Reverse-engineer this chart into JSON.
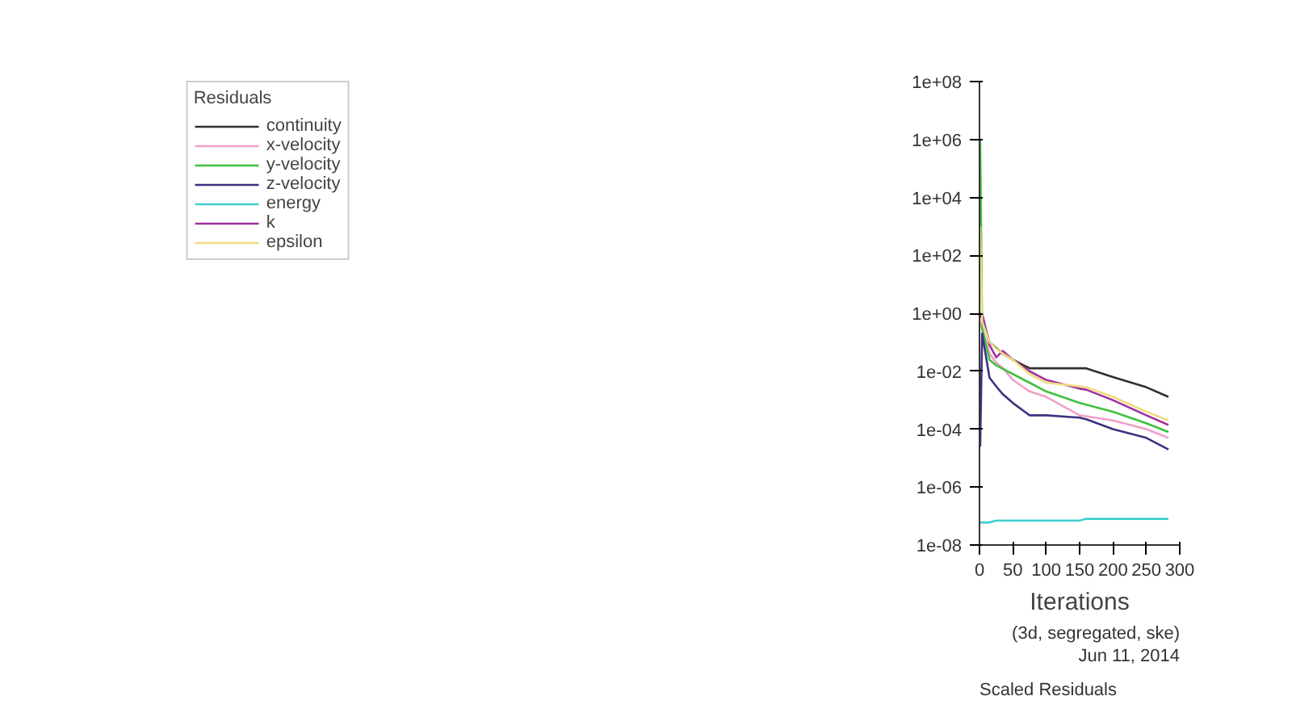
{
  "chart_data": {
    "type": "line",
    "xlabel": "Iterations",
    "legend_title": "Residuals",
    "legend": "top left",
    "log": "y",
    "grid": false,
    "xlim": [
      0,
      300
    ],
    "xticks": [
      0,
      50,
      100,
      150,
      200,
      250,
      300
    ],
    "ylim": [
      1e-08,
      100000000.0
    ],
    "yticks": [
      {
        "value": 1e-08,
        "label": "1e-08"
      },
      {
        "value": 1e-06,
        "label": "1e-06"
      },
      {
        "value": 0.0001,
        "label": "1e-04"
      },
      {
        "value": 0.01,
        "label": "1e-02"
      },
      {
        "value": 1,
        "label": "1e+00"
      },
      {
        "value": 100,
        "label": "1e+02"
      },
      {
        "value": 10000,
        "label": "1e+04"
      },
      {
        "value": 1000000,
        "label": "1e+06"
      },
      {
        "value": 100000000,
        "label": "1e+08"
      }
    ],
    "x": [
      1,
      4,
      15,
      25,
      35,
      50,
      75,
      100,
      150,
      160,
      200,
      250,
      283
    ],
    "series": [
      {
        "name": "continuity",
        "color": "#303030",
        "values": [
          1,
          0.63,
          0.1,
          0.063,
          0.04,
          0.025,
          0.0126,
          0.0126,
          0.0126,
          0.0126,
          0.0063,
          0.0028,
          0.0013
        ]
      },
      {
        "name": "x-velocity",
        "color": "#f0a0c8",
        "values": [
          0.5,
          0.3,
          0.04,
          0.02,
          0.013,
          0.005,
          0.002,
          0.0013,
          0.0003,
          0.00028,
          0.0002,
          0.0001,
          5e-05
        ]
      },
      {
        "name": "y-velocity",
        "color": "#40c040",
        "values": [
          1000000,
          0.3,
          0.025,
          0.016,
          0.012,
          0.008,
          0.004,
          0.002,
          0.0008,
          0.0007,
          0.0004,
          0.00016,
          8e-05
        ]
      },
      {
        "name": "z-velocity",
        "color": "#403080",
        "values": [
          2.5e-05,
          0.2,
          0.006,
          0.003,
          0.0016,
          0.0008,
          0.0003,
          0.0003,
          0.00025,
          0.00022,
          0.0001,
          5e-05,
          2e-05
        ]
      },
      {
        "name": "energy",
        "color": "#40d0d0",
        "values": [
          6e-08,
          6e-08,
          6e-08,
          7e-08,
          7e-08,
          7e-08,
          7e-08,
          7e-08,
          7e-08,
          8e-08,
          8e-08,
          8e-08,
          8e-08
        ]
      },
      {
        "name": "k",
        "color": "#a030a0",
        "values": [
          1,
          1,
          0.08,
          0.03,
          0.05,
          0.025,
          0.01,
          0.005,
          0.0025,
          0.0023,
          0.001,
          0.0003,
          0.00014
        ]
      },
      {
        "name": "epsilon",
        "color": "#f0dc80",
        "values": [
          1000,
          0.5,
          0.1,
          0.06,
          0.04,
          0.025,
          0.008,
          0.004,
          0.003,
          0.0028,
          0.0013,
          0.0004,
          0.0002
        ]
      }
    ],
    "annotations": [
      "Scaled Residuals",
      "Jun 11, 2014",
      "(3d, segregated, ske)"
    ]
  }
}
